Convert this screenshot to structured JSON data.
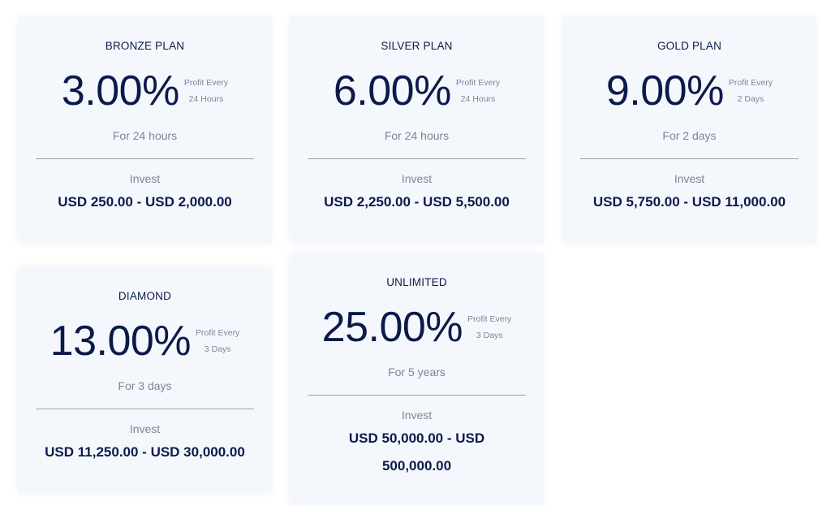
{
  "plans": [
    {
      "name": "BRONZE PLAN",
      "rate": "3.00%",
      "profit_label": "Profit Every",
      "profit_interval": "24 Hours",
      "duration": "For 24 hours",
      "invest_label": "Invest",
      "range": "USD 250.00 - USD 2,000.00"
    },
    {
      "name": "SILVER PLAN",
      "rate": "6.00%",
      "profit_label": "Profit Every",
      "profit_interval": "24 Hours",
      "duration": "For 24 hours",
      "invest_label": "Invest",
      "range": "USD 2,250.00 - USD 5,500.00"
    },
    {
      "name": "GOLD PLAN",
      "rate": "9.00%",
      "profit_label": "Profit Every",
      "profit_interval": "2 Days",
      "duration": "For 2 days",
      "invest_label": "Invest",
      "range": "USD 5,750.00 - USD 11,000.00"
    },
    {
      "name": "DIAMOND",
      "rate": "13.00%",
      "profit_label": "Profit Every",
      "profit_interval": "3 Days",
      "duration": "For 3 days",
      "invest_label": "Invest",
      "range": "USD 11,250.00 - USD 30,000.00"
    },
    {
      "name": "UNLIMITED",
      "rate": "25.00%",
      "profit_label": "Profit Every",
      "profit_interval": "3 Days",
      "duration": "For 5 years",
      "invest_label": "Invest",
      "range_line1": "USD 50,000.00 - USD",
      "range_line2": "500,000.00"
    }
  ],
  "colors": {
    "card_background": "#f4f8fd",
    "heading": "#0c1a4a",
    "muted_text": "#7d8496",
    "divider": "#9ca0aa"
  }
}
